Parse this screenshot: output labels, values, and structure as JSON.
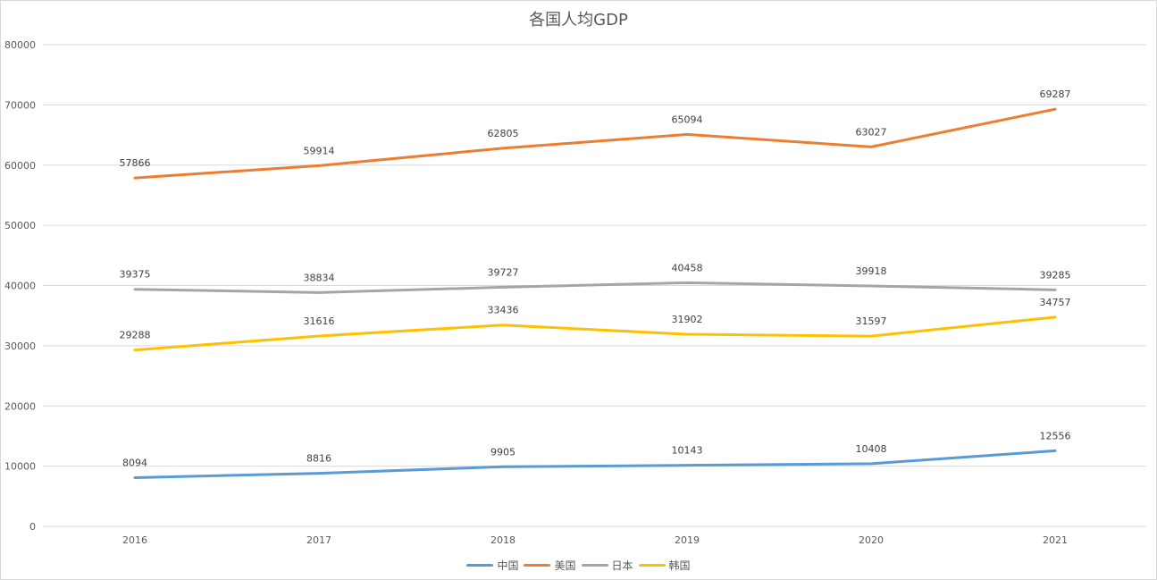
{
  "chart_data": {
    "type": "line",
    "title": "各国人均GDP",
    "xlabel": "",
    "ylabel": "",
    "categories": [
      "2016",
      "2017",
      "2018",
      "2019",
      "2020",
      "2021"
    ],
    "ylim": [
      0,
      80000
    ],
    "yticks": [
      "0",
      "10000",
      "20000",
      "30000",
      "40000",
      "50000",
      "60000",
      "70000",
      "80000"
    ],
    "grid": true,
    "legend_position": "bottom",
    "data_labels": true,
    "series": [
      {
        "name": "中国",
        "color": "#5b9bd5",
        "values": [
          8094,
          8816,
          9905,
          10143,
          10408,
          12556
        ]
      },
      {
        "name": "美国",
        "color": "#ed7d31",
        "values": [
          57866,
          59914,
          62805,
          65094,
          63027,
          69287
        ]
      },
      {
        "name": "日本",
        "color": "#a5a5a5",
        "values": [
          39375,
          38834,
          39727,
          40458,
          39918,
          39285
        ]
      },
      {
        "name": "韩国",
        "color": "#ffc000",
        "values": [
          29288,
          31616,
          33436,
          31902,
          31597,
          34757
        ]
      }
    ]
  }
}
